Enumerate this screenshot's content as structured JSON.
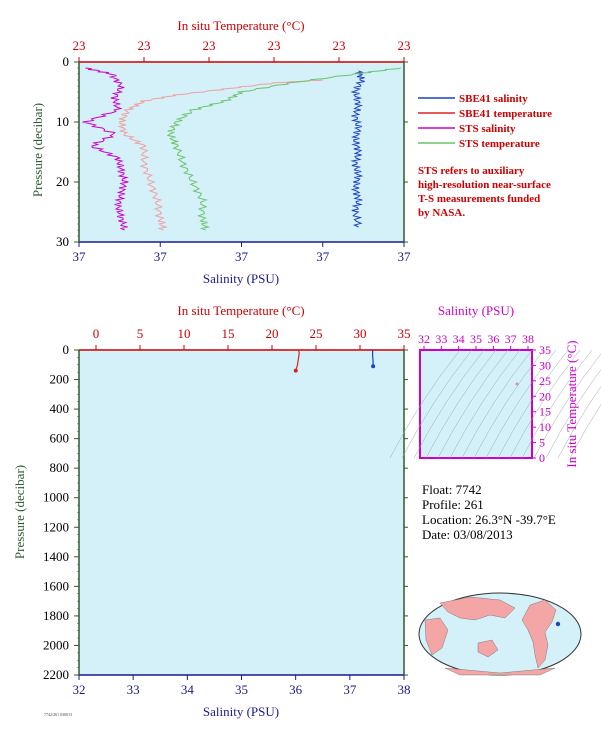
{
  "colors": {
    "plot_bg": "#d4f1f9",
    "temp_axis": "#cc0000",
    "sal_axis": "#1a1a8c",
    "pressure_axis": "#2e5b2e",
    "sbe41_salinity": "#1a40c8",
    "sbe41_temperature": "#e02020",
    "sts_salinity": "#cc00cc",
    "sts_temperature": "#6ac46a",
    "sts_temperature_near": "#f0a0a0",
    "ts_axis": "#cc00cc"
  },
  "top_chart": {
    "title": "In situ Temperature (°C)",
    "top_tick_labels": [
      "23",
      "23",
      "23",
      "23",
      "23",
      "23"
    ],
    "bottom_tick_labels": [
      "37",
      "37",
      "37",
      "37",
      "37"
    ],
    "y_tick_labels": [
      "0",
      "10",
      "20",
      "30"
    ],
    "ylabel": "Pressure (decibar)",
    "xlabel": "Salinity (PSU)",
    "legend": [
      {
        "label": "SBE41 salinity",
        "color": "#1a40c8"
      },
      {
        "label": "SBE41 temperature",
        "color": "#e02020"
      },
      {
        "label": "STS salinity",
        "color": "#cc00cc"
      },
      {
        "label": "STS temperature",
        "color": "#6ac46a"
      }
    ],
    "note_lines": [
      "STS refers to auxiliary",
      "high-resolution near-surface",
      "T-S measurements funded",
      "by NASA."
    ]
  },
  "bottom_chart": {
    "title": "In situ Temperature (°C)",
    "top_tick_labels": [
      "0",
      "5",
      "10",
      "15",
      "20",
      "25",
      "30",
      "35"
    ],
    "bottom_tick_labels": [
      "32",
      "33",
      "34",
      "35",
      "36",
      "37",
      "38"
    ],
    "y_tick_labels": [
      "0",
      "200",
      "400",
      "600",
      "800",
      "1000",
      "1200",
      "1400",
      "1600",
      "1800",
      "2000",
      "2200"
    ],
    "ylabel": "Pressure (decibar)",
    "xlabel": "Salinity (PSU)"
  },
  "ts_chart": {
    "title": "Salinity (PSU)",
    "top_tick_labels": [
      "32",
      "33",
      "34",
      "35",
      "36",
      "37",
      "38"
    ],
    "right_tick_labels": [
      "35",
      "30",
      "25",
      "20",
      "15",
      "10",
      "5",
      "0"
    ],
    "ylabel": "In situ Temperature (°C)"
  },
  "float_info": {
    "float": "Float:  7742",
    "profile": "Profile:  261",
    "location": "Location:  26.3°N  -39.7°E",
    "date": "Date:  03/08/2013"
  },
  "chart_data": [
    {
      "type": "line",
      "name": "near-surface profile",
      "xlabel": "Salinity (PSU)",
      "x2label": "In situ Temperature (°C)",
      "ylabel": "Pressure (decibar)",
      "ylim": [
        30,
        0
      ],
      "series": [
        {
          "name": "SBE41 salinity",
          "color": "#1a40c8",
          "points": [
            [
              0.86,
              1.5
            ],
            [
              0.87,
              3
            ],
            [
              0.85,
              5
            ],
            [
              0.86,
              7
            ],
            [
              0.85,
              9
            ],
            [
              0.86,
              11
            ],
            [
              0.85,
              13
            ],
            [
              0.86,
              15
            ],
            [
              0.85,
              17
            ],
            [
              0.86,
              19
            ],
            [
              0.85,
              21
            ],
            [
              0.86,
              23
            ],
            [
              0.85,
              25
            ],
            [
              0.86,
              27.5
            ]
          ]
        },
        {
          "name": "SBE41 temperature",
          "color": "#e02020",
          "points": [
            [
              0.75,
              3
            ],
            [
              0.6,
              3.5
            ],
            [
              0.45,
              4.5
            ],
            [
              0.3,
              5.5
            ],
            [
              0.2,
              6.5
            ],
            [
              0.15,
              8
            ],
            [
              0.13,
              10
            ],
            [
              0.14,
              12
            ],
            [
              0.2,
              14
            ],
            [
              0.2,
              17
            ],
            [
              0.22,
              20
            ],
            [
              0.24,
              23
            ],
            [
              0.25,
              26
            ],
            [
              0.26,
              28
            ]
          ]
        },
        {
          "name": "STS salinity",
          "color": "#cc00cc",
          "points": [
            [
              0.02,
              1
            ],
            [
              0.1,
              2
            ],
            [
              0.13,
              4
            ],
            [
              0.11,
              6
            ],
            [
              0.12,
              8
            ],
            [
              0.02,
              10
            ],
            [
              0.11,
              12
            ],
            [
              0.04,
              14
            ],
            [
              0.12,
              16
            ],
            [
              0.13,
              18
            ],
            [
              0.14,
              20
            ],
            [
              0.13,
              22
            ],
            [
              0.12,
              24
            ],
            [
              0.13,
              26
            ],
            [
              0.14,
              28
            ]
          ]
        },
        {
          "name": "STS temperature",
          "color": "#6ac46a",
          "points": [
            [
              0.99,
              1
            ],
            [
              0.85,
              2
            ],
            [
              0.65,
              3.5
            ],
            [
              0.5,
              5
            ],
            [
              0.45,
              6.5
            ],
            [
              0.35,
              8
            ],
            [
              0.3,
              10
            ],
            [
              0.28,
              12
            ],
            [
              0.3,
              14
            ],
            [
              0.32,
              17
            ],
            [
              0.35,
              20
            ],
            [
              0.38,
              23
            ],
            [
              0.38,
              26
            ],
            [
              0.39,
              28
            ]
          ]
        }
      ]
    },
    {
      "type": "line",
      "name": "full profile",
      "xlabel": "Salinity (PSU)",
      "xlim": [
        32,
        38
      ],
      "x2label": "In situ Temperature (°C)",
      "x2lim": [
        0,
        35
      ],
      "ylabel": "Pressure (decibar)",
      "ylim": [
        2200,
        0
      ],
      "series": [
        {
          "name": "SBE41 temperature",
          "color": "#e02020",
          "x_axis": "temperature",
          "points": [
            [
              23,
              0
            ],
            [
              23.1,
              20
            ],
            [
              23,
              60
            ],
            [
              22.9,
              100
            ],
            [
              22.7,
              140
            ]
          ]
        },
        {
          "name": "SBE41 salinity",
          "color": "#1a40c8",
          "x_axis": "salinity",
          "points": [
            [
              37.42,
              0
            ],
            [
              37.42,
              40
            ],
            [
              37.43,
              80
            ],
            [
              37.43,
              110
            ]
          ]
        }
      ]
    }
  ]
}
